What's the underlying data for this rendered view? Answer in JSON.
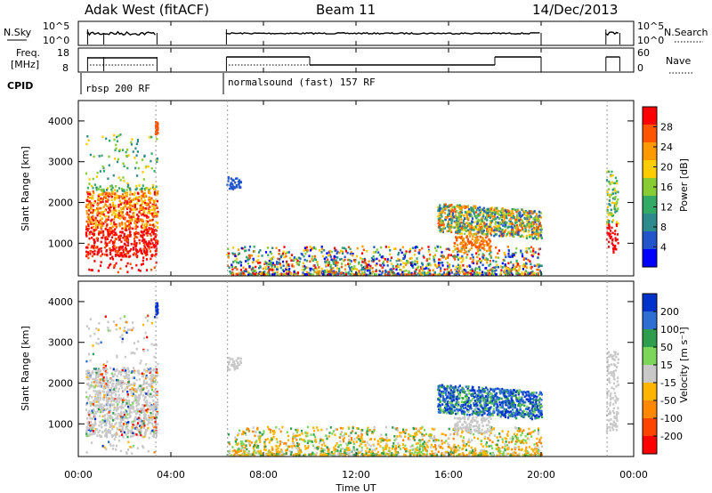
{
  "header": {
    "station": "Adak West (fitACF)",
    "beam": "Beam 11",
    "date": "14/Dec/2013"
  },
  "chart_data": [
    {
      "type": "line",
      "panel": "noise",
      "left_label": "N.Sky",
      "right_label": "N.Search",
      "left_ticks": [
        "10^5",
        "10^0"
      ],
      "right_ticks": [
        "10^5",
        "10^0"
      ],
      "segments_hours": [
        [
          0.4,
          3.4
        ],
        [
          6.4,
          20.0
        ],
        [
          22.8,
          23.4
        ]
      ]
    },
    {
      "type": "line",
      "panel": "frequency",
      "left_label_lines": [
        "Freq.",
        "[MHz]"
      ],
      "right_label": "Nave",
      "left_ticks": [
        "18",
        "8"
      ],
      "right_ticks": [
        "60",
        "0"
      ]
    },
    {
      "type": "table",
      "panel": "cpid",
      "label": "CPID",
      "entries": [
        {
          "start_hour": 0.4,
          "text": "rbsp 200 RF"
        },
        {
          "start_hour": 6.4,
          "text": "normalsound (fast) 157 RF"
        }
      ]
    },
    {
      "type": "heatmap",
      "panel": "power",
      "ylabel": "Slant Range [km]",
      "ylim": [
        200,
        4500
      ],
      "yticks": [
        1000,
        2000,
        3000,
        4000
      ],
      "colorbar_label": "Power [dB]",
      "colorbar_ticks": [
        "28",
        "24",
        "20",
        "16",
        "12",
        "8",
        "4"
      ],
      "colorbar_colors": [
        "#ff0000",
        "#ff5500",
        "#ff9900",
        "#ffcc00",
        "#88cc33",
        "#33aa66",
        "#2e8b8b",
        "#2255cc",
        "#0000ff"
      ]
    },
    {
      "type": "heatmap",
      "panel": "velocity",
      "ylabel": "Slant Range [km]",
      "ylim": [
        200,
        4500
      ],
      "yticks": [
        1000,
        2000,
        3000,
        4000
      ],
      "colorbar_label": "Velocity [m s⁻¹]",
      "colorbar_ticks": [
        "200",
        "100",
        "50",
        "15",
        "-15",
        "-50",
        "-100",
        "-200"
      ],
      "colorbar_colors": [
        "#0033cc",
        "#2e6fd4",
        "#2e9e4e",
        "#7cd65a",
        "#c8c8c8",
        "#ffb400",
        "#ff8800",
        "#ff4400",
        "#ff0000"
      ]
    }
  ],
  "time_axis": {
    "label": "Time UT",
    "ticks": [
      "00:00",
      "04:00",
      "08:00",
      "12:00",
      "16:00",
      "20:00",
      "00:00"
    ],
    "tick_hours": [
      0,
      4,
      8,
      12,
      16,
      20,
      24
    ]
  }
}
